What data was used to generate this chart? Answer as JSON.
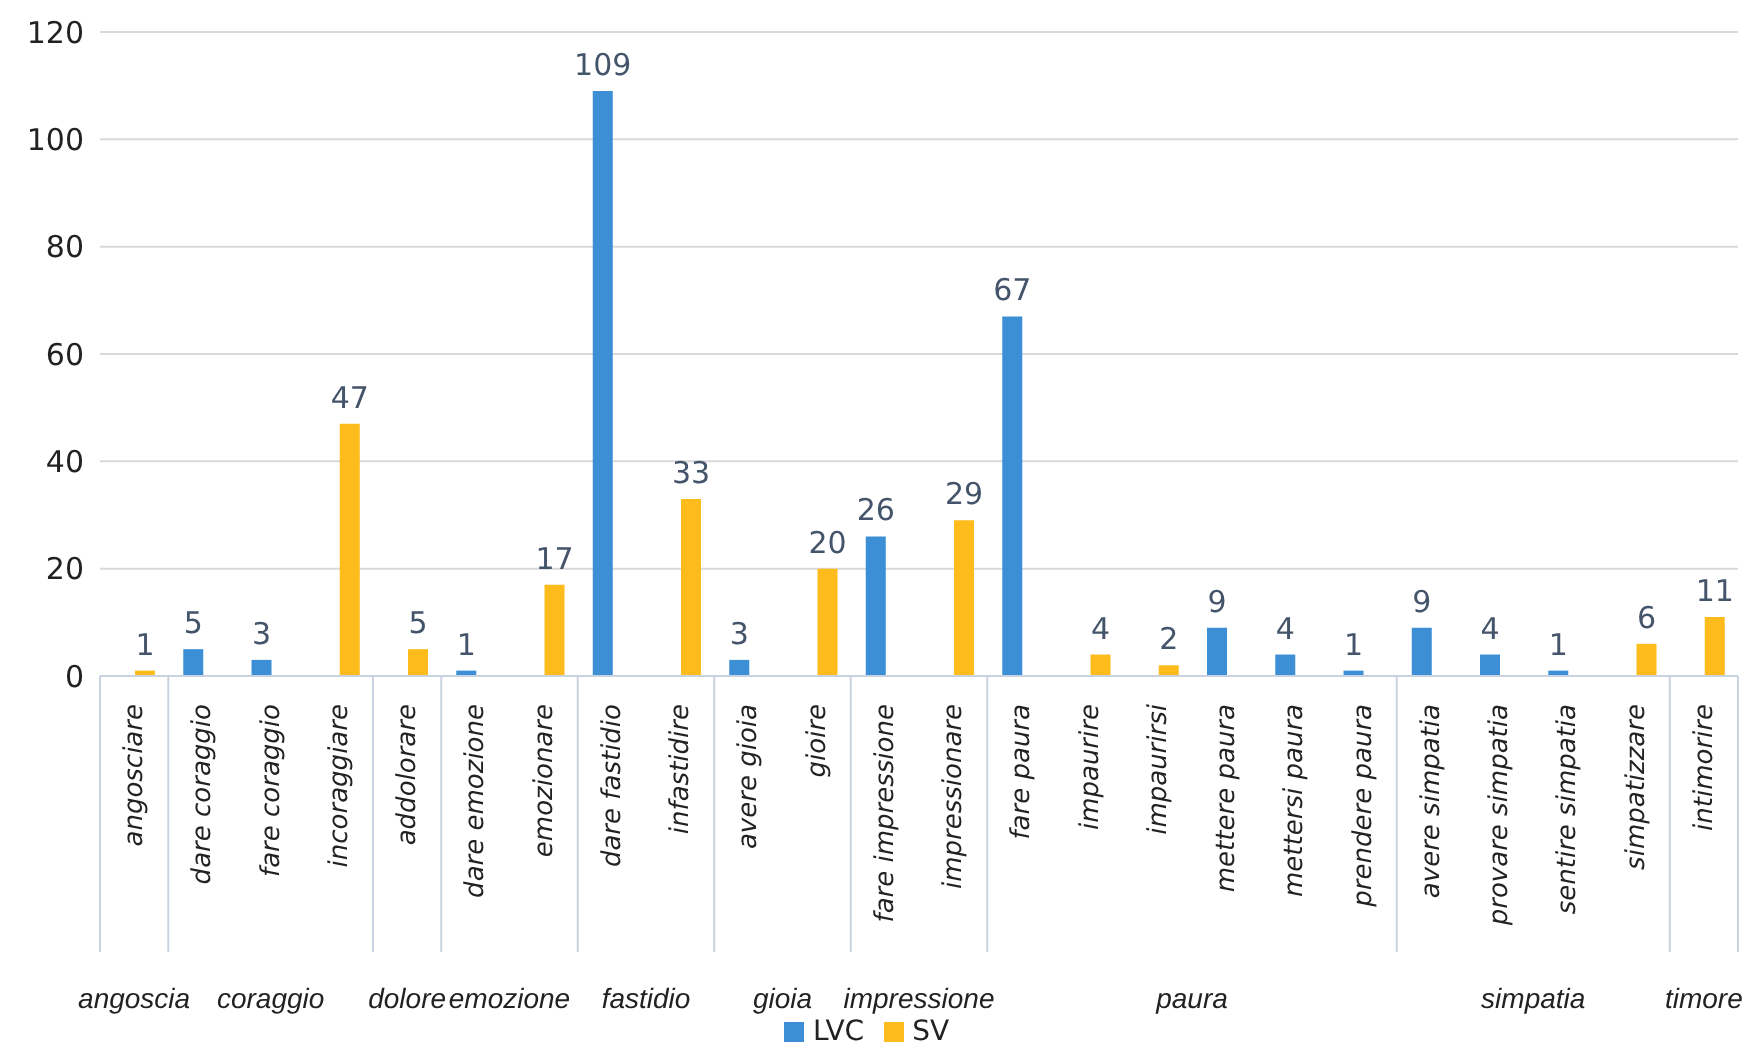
{
  "chart_data": {
    "type": "bar",
    "categories": [
      "angosciare",
      "dare coraggio",
      "fare coraggio",
      "incoraggiare",
      "addolorare",
      "dare emozione",
      "emozionare",
      "dare fastidio",
      "infastidire",
      "avere gioia",
      "gioire",
      "fare impressione",
      "impressionare",
      "fare paura",
      "impaurire",
      "impaurirsi",
      "mettere paura",
      "mettersi paura",
      "prendere paura",
      "avere simpatia",
      "provare simpatia",
      "sentire simpatia",
      "simpatizzare",
      "intimorire"
    ],
    "series": [
      {
        "name": "LVC",
        "color": "#3c8fd4",
        "values": [
          null,
          5,
          3,
          null,
          null,
          1,
          null,
          109,
          null,
          3,
          null,
          26,
          null,
          67,
          null,
          null,
          9,
          4,
          1,
          9,
          4,
          1,
          null,
          null
        ]
      },
      {
        "name": "SV",
        "color": "#fdbb1c",
        "values": [
          1,
          null,
          null,
          47,
          5,
          null,
          17,
          null,
          33,
          null,
          20,
          null,
          29,
          null,
          4,
          2,
          null,
          null,
          null,
          null,
          null,
          null,
          6,
          11
        ]
      }
    ],
    "annotations": [
      "angoscia",
      "coraggio",
      "dolore",
      "emozione",
      "fastidio",
      "gioia",
      "impressione",
      "paura",
      "simpatia",
      "timore"
    ],
    "ylim": [
      0,
      120
    ],
    "yticks": [
      0,
      20,
      40,
      60,
      80,
      100,
      120
    ],
    "grid": "y",
    "legend": "bottom",
    "data_labels": true
  }
}
